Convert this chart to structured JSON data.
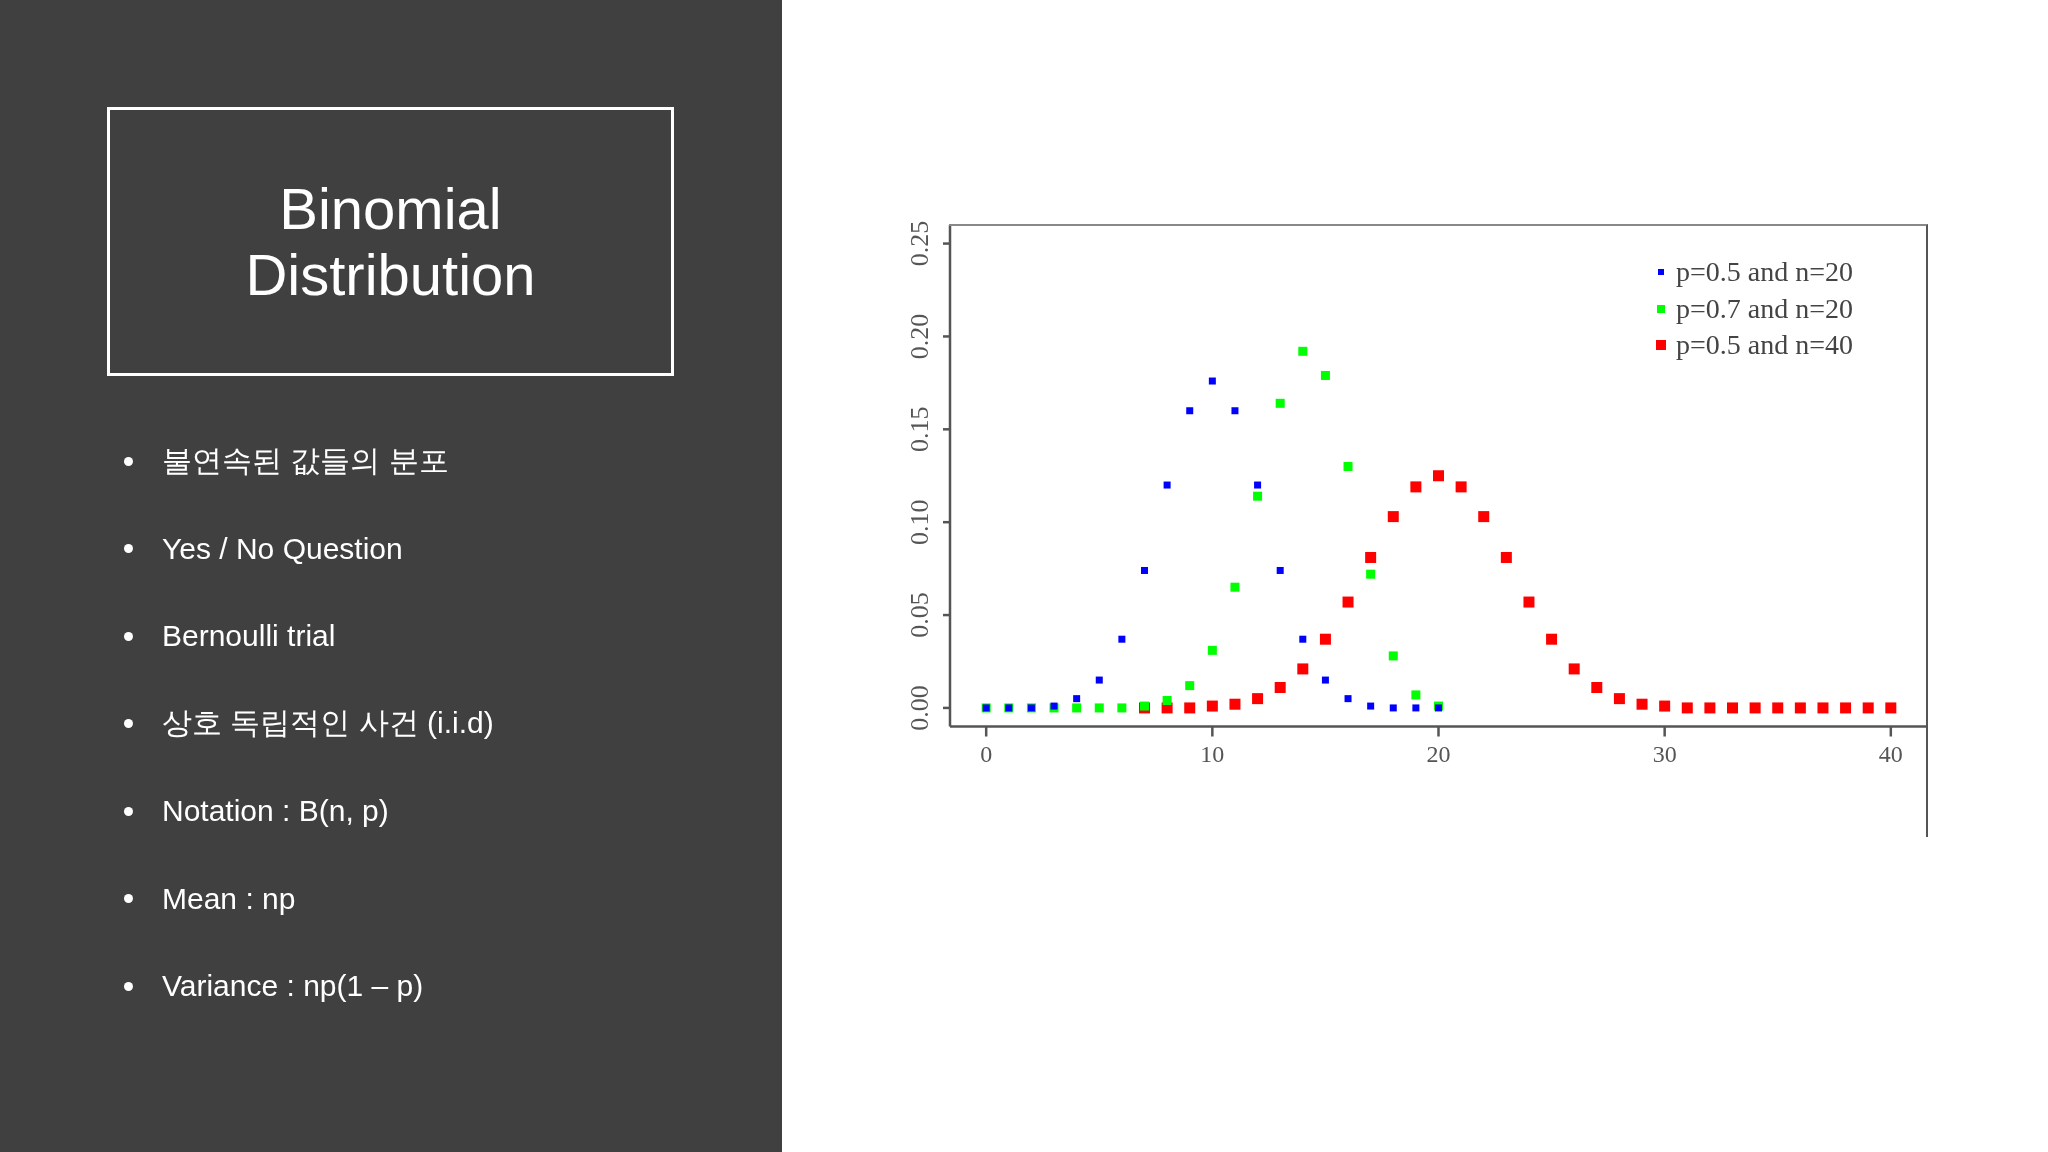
{
  "chart_data": {
    "type": "scatter",
    "title": "Binomial Distribution",
    "annotations": [
      "불연속된 값들의 분포",
      "Yes / No Question",
      "Bernoulli trial",
      "상호 독립적인 사건 (i.i.d)",
      "Notation : B(n, p)",
      "Mean : np",
      "Variance : np(1 – p)"
    ],
    "series": [
      {
        "name": "p=0.5 and n=20",
        "color": "#0000ff",
        "x": [
          0,
          1,
          2,
          3,
          4,
          5,
          6,
          7,
          8,
          9,
          10,
          11,
          12,
          13,
          14,
          15,
          16,
          17,
          18,
          19,
          20
        ],
        "values": [
          0,
          0,
          0,
          0.001,
          0.005,
          0.015,
          0.037,
          0.074,
          0.12,
          0.16,
          0.176,
          0.16,
          0.12,
          0.074,
          0.037,
          0.015,
          0.005,
          0.001,
          0,
          0,
          0
        ]
      },
      {
        "name": "p=0.7 and n=20",
        "color": "#00ff00",
        "x": [
          0,
          1,
          2,
          3,
          4,
          5,
          6,
          7,
          8,
          9,
          10,
          11,
          12,
          13,
          14,
          15,
          16,
          17,
          18,
          19,
          20
        ],
        "values": [
          0,
          0,
          0,
          0,
          0,
          0,
          0,
          0.001,
          0.004,
          0.012,
          0.031,
          0.065,
          0.114,
          0.164,
          0.192,
          0.179,
          0.13,
          0.072,
          0.028,
          0.007,
          0.001
        ]
      },
      {
        "name": "p=0.5 and n=40",
        "color": "#ff0000",
        "x": [
          7,
          8,
          9,
          10,
          11,
          12,
          13,
          14,
          15,
          16,
          17,
          18,
          19,
          20,
          21,
          22,
          23,
          24,
          25,
          26,
          27,
          28,
          29,
          30,
          31,
          32,
          33,
          34,
          35,
          36,
          37,
          38,
          39,
          40
        ],
        "values": [
          0,
          0,
          0,
          0.001,
          0.002,
          0.005,
          0.011,
          0.021,
          0.037,
          0.057,
          0.081,
          0.103,
          0.119,
          0.125,
          0.119,
          0.103,
          0.081,
          0.057,
          0.037,
          0.021,
          0.011,
          0.005,
          0.002,
          0.001,
          0,
          0,
          0,
          0,
          0,
          0,
          0,
          0,
          0,
          0
        ]
      }
    ],
    "xlim": [
      -1.6,
      41.6
    ],
    "xticks": [
      0,
      10,
      20,
      30,
      40
    ],
    "ylim": [
      -0.01,
      0.26
    ],
    "yticks": [
      {
        "value": 0,
        "label": "0.00"
      },
      0.05,
      {
        "value": 0.1,
        "label": "0.10"
      },
      0.15,
      {
        "value": 0.2,
        "label": "0.20"
      },
      0.25
    ],
    "legend": "top right",
    "marker": "square"
  }
}
